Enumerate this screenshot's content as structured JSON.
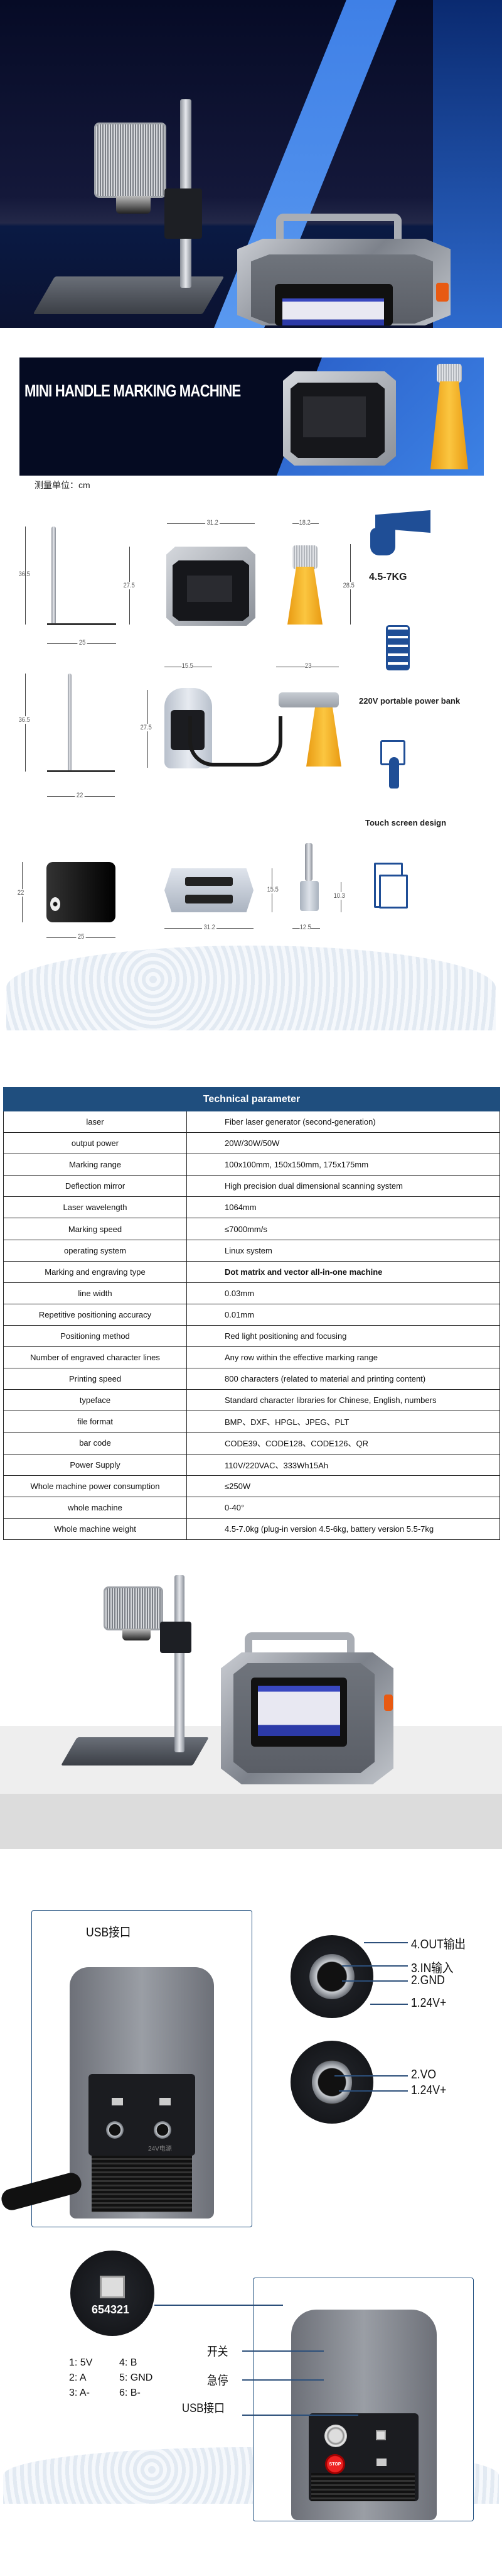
{
  "banner": {
    "title": "MINI HANDLE MARKING MACHINE"
  },
  "unit_label": "测量单位：cm",
  "dimensions": {
    "view1": {
      "stand_height": "36.5",
      "stand_base": "25",
      "machine_width": "31.2",
      "machine_height": "27.5",
      "head_width": "18.2",
      "head_height": "28.5"
    },
    "view2": {
      "stand_height": "36.5",
      "stand_base": "22",
      "machine_depth": "15.5",
      "machine_height": "27.5",
      "head_length": "23"
    },
    "view3": {
      "plate_height": "22",
      "plate_width": "25",
      "machine_width": "31.2",
      "machine_depth": "15.5",
      "head_height": "10.3",
      "head_width": "12.5"
    }
  },
  "features": [
    {
      "icon": "hand-weight-icon",
      "label": "4.5-7KG"
    },
    {
      "icon": "battery-icon",
      "label": "220V portable power bank"
    },
    {
      "icon": "touch-screen-icon",
      "label": "Touch screen design"
    },
    {
      "icon": "tablets-icon",
      "label": ""
    }
  ],
  "colors": {
    "accent": "#1f4e7e",
    "icon_blue": "#1f4e96",
    "amber": "#f6b526"
  },
  "table": {
    "title": "Technical parameter",
    "rows": [
      {
        "k": "laser",
        "v": "Fiber laser generator (second-generation)"
      },
      {
        "k": "output power",
        "v": "20W/30W/50W"
      },
      {
        "k": "Marking range",
        "v": "100x100mm, 150x150mm, 175x175mm"
      },
      {
        "k": "Deflection mirror",
        "v": "High precision dual dimensional scanning system"
      },
      {
        "k": "Laser wavelength",
        "v": "1064mm"
      },
      {
        "k": "Marking speed",
        "v": "≤7000mm/s"
      },
      {
        "k": "operating system",
        "v": "Linux system"
      },
      {
        "k": "Marking and engraving type",
        "v": "Dot matrix and vector all-in-one machine"
      },
      {
        "k": "line width",
        "v": "0.03mm"
      },
      {
        "k": "Repetitive positioning accuracy",
        "v": "0.01mm"
      },
      {
        "k": "Positioning method",
        "v": "Red light positioning and focusing"
      },
      {
        "k": "Number of engraved character lines",
        "v": "Any row within the effective marking range"
      },
      {
        "k": "Printing speed",
        "v": "800 characters (related to material and printing content)"
      },
      {
        "k": "typeface",
        "v": "Standard character libraries for Chinese, English, numbers"
      },
      {
        "k": "file format",
        "v": "BMP、DXF、HPGL、JPEG、PLT"
      },
      {
        "k": "bar code",
        "v": "CODE39、CODE128、CODE126、QR"
      },
      {
        "k": "Power Supply",
        "v": "110V/220VAC、333Wh15Ah"
      },
      {
        "k": "Whole machine power consumption",
        "v": "≤250W"
      },
      {
        "k": "whole machine",
        "v": "0-40°"
      },
      {
        "k": "Whole machine weight",
        "v": "4.5-7.0kg (plug-in version 4.5-6kg, battery version 5.5-7kg"
      }
    ]
  },
  "interface1": {
    "usb_label": "USB接口",
    "panel_text": "24V电源",
    "connector4": [
      "4.OUT输出",
      "3.IN输入",
      "2.GND",
      "1.24V+"
    ],
    "connector2": [
      "2.VO",
      "1.24V+"
    ]
  },
  "interface2": {
    "rj45_label": "654321",
    "pinout": [
      "1: 5V",
      "4: B",
      "2: A",
      "5: GND",
      "3: A-",
      "6: B-"
    ],
    "switch_label": "开关",
    "estop_label": "急停",
    "usb_label": "USB接口",
    "stop_text": "STOP"
  }
}
